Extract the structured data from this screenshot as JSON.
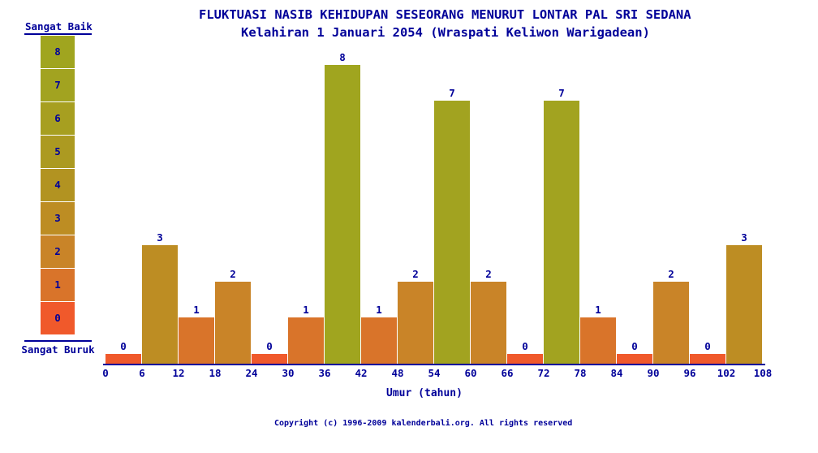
{
  "title": "FLUKTUASI NASIB KEHIDUPAN SESEORANG MENURUT LONTAR PAL SRI SEDANA",
  "subtitle": "Kelahiran 1 Januari 2054 (Wraspati Keliwon Warigadean)",
  "legend": {
    "top_label": "Sangat Baik",
    "bottom_label": "Sangat Buruk",
    "scale_values": [
      8,
      7,
      6,
      5,
      4,
      3,
      2,
      1,
      0
    ]
  },
  "colors": {
    "text_navy": "#000099",
    "axis": "#000099",
    "background": "#ffffff",
    "value_scale": {
      "0": "#F0592B",
      "1": "#D9742A",
      "2": "#C98428",
      "3": "#BD8D23",
      "4": "#B29321",
      "5": "#AC9A21",
      "6": "#A79F20",
      "7": "#A2A320",
      "8": "#A0A51F"
    }
  },
  "chart_data": {
    "type": "bar",
    "title": "FLUKTUASI NASIB KEHIDUPAN SESEORANG MENURUT LONTAR PAL SRI SEDANA",
    "subtitle": "Kelahiran 1 Januari 2054 (Wraspati Keliwon Warigadean)",
    "xlabel": "Umur (tahun)",
    "ylabel": "",
    "x_bin_starts": [
      0,
      6,
      12,
      18,
      24,
      30,
      36,
      42,
      48,
      54,
      60,
      66,
      72,
      78,
      84,
      90,
      96,
      102
    ],
    "bin_width_years": 6,
    "values": [
      0,
      3,
      1,
      2,
      0,
      1,
      8,
      1,
      2,
      7,
      2,
      0,
      7,
      1,
      0,
      2,
      0,
      3
    ],
    "x_tick_labels": [
      "0",
      "6",
      "12",
      "18",
      "24",
      "30",
      "36",
      "42",
      "48",
      "54",
      "60",
      "66",
      "72",
      "78",
      "84",
      "90",
      "96",
      "102",
      "108"
    ],
    "ylim": [
      0,
      8
    ],
    "grid": false,
    "legend_position": "left",
    "value_labels_shown": true
  },
  "footer": {
    "copyright": "Copyright (c) 1996-2009 kalenderbali.org. All rights reserved"
  }
}
